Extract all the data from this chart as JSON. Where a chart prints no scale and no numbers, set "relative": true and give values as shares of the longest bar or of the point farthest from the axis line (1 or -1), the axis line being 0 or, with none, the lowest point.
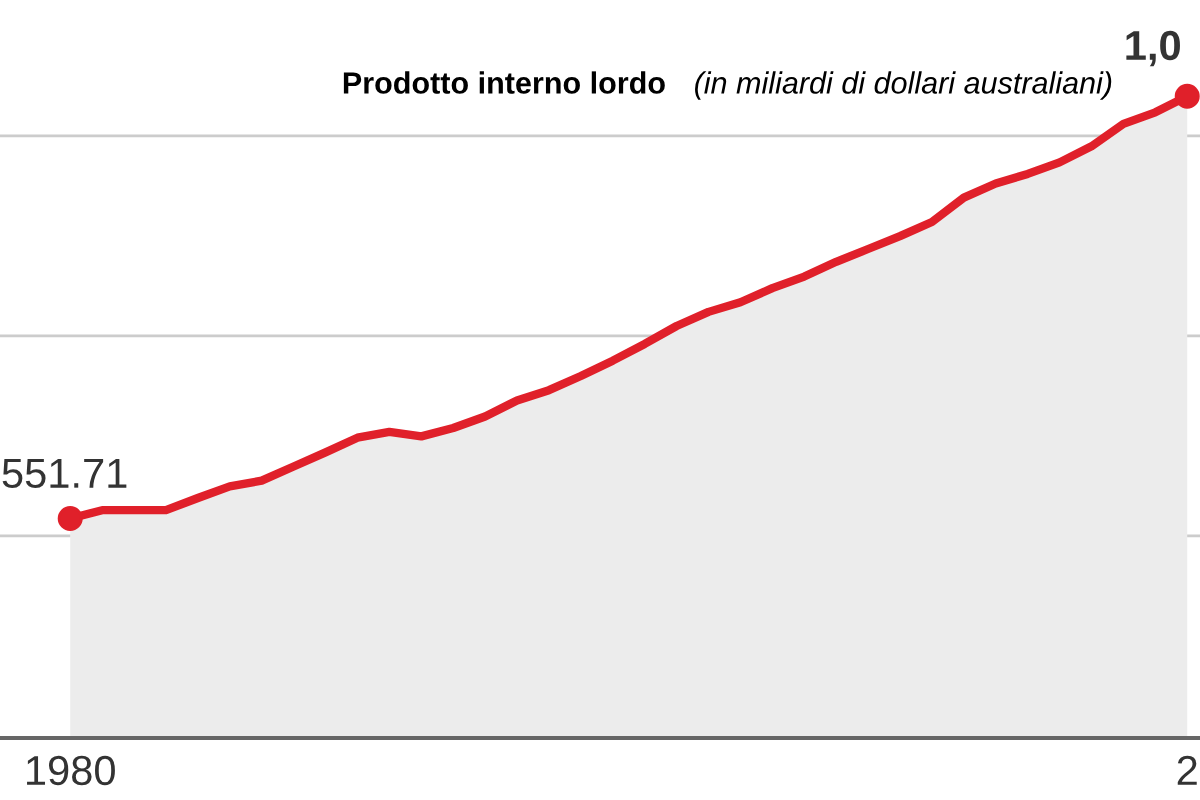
{
  "chart_data": {
    "type": "area",
    "title": "Prodotto interno lordo",
    "subtitle": "(in miliardi di dollari australiani)",
    "relative": true,
    "categories": [
      "1980",
      null,
      null,
      null,
      null,
      null,
      null,
      null,
      null,
      null,
      null,
      null,
      null,
      null,
      null,
      null,
      null,
      null,
      null,
      null,
      null,
      null,
      null,
      null,
      null,
      null,
      null,
      null,
      null,
      null,
      null,
      null,
      null,
      null,
      null,
      "2"
    ],
    "series": [
      {
        "color": "#e0202a",
        "values": [
          0.342,
          0.355,
          0.355,
          0.355,
          0.374,
          0.392,
          0.401,
          0.423,
          0.445,
          0.468,
          0.477,
          0.47,
          0.483,
          0.501,
          0.526,
          0.542,
          0.564,
          0.588,
          0.614,
          0.642,
          0.664,
          0.679,
          0.701,
          0.719,
          0.742,
          0.762,
          0.782,
          0.804,
          0.842,
          0.864,
          0.879,
          0.897,
          0.922,
          0.957,
          0.975,
          1
        ]
      }
    ],
    "annotations": [
      "551.71",
      "1,0"
    ],
    "grid": "y"
  }
}
